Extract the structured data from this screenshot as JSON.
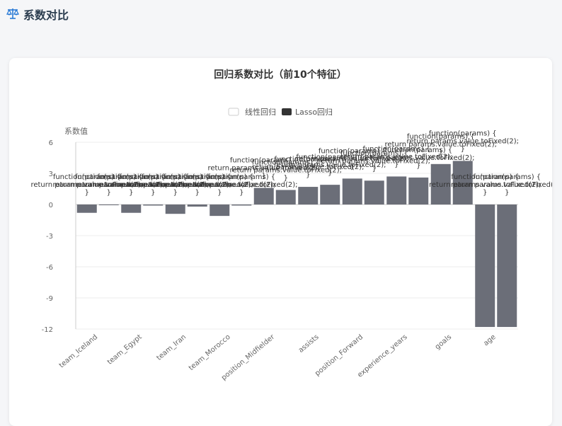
{
  "page": {
    "title": "系数对比"
  },
  "chart_data": {
    "type": "bar",
    "title": "回归系数对比（前10个特征）",
    "ylabel": "系数值",
    "xlabel": "",
    "ylim": [
      -12,
      6
    ],
    "yticks": [
      -12,
      -9,
      -6,
      -3,
      0,
      3,
      6
    ],
    "legend_position": "top",
    "categories": [
      "team_Iceland",
      "team_Egypt",
      "team_Iran",
      "team_Morocco",
      "position_Midfielder",
      "assists",
      "position_Forward",
      "experience_years",
      "goals",
      "age"
    ],
    "series": [
      {
        "name": "线性回归",
        "color": "#6b6e78",
        "values": [
          -0.8,
          -0.8,
          -0.9,
          -1.1,
          1.6,
          1.7,
          2.5,
          2.7,
          3.9,
          -11.8
        ]
      },
      {
        "name": "Lasso回归",
        "color": "#6b6e78",
        "values": [
          -0.05,
          -0.1,
          -0.2,
          -0.1,
          1.4,
          1.9,
          2.3,
          2.6,
          4.2,
          -11.8
        ]
      }
    ],
    "legend_colors": {
      "线性回归": "#ffffff",
      "Lasso回归": "#333333"
    },
    "data_label_text": [
      "function(params) {",
      "return params.value.toFixed(2);",
      "}"
    ]
  }
}
